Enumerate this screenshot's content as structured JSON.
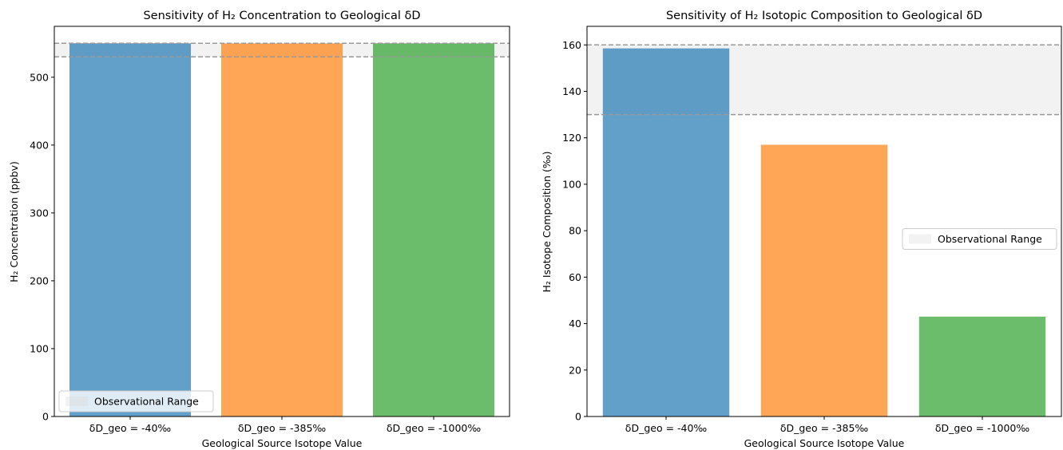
{
  "chart_data": [
    {
      "type": "bar",
      "title": "Sensitivity of H₂ Concentration to Geological δD",
      "xlabel": "Geological Source Isotope Value",
      "ylabel": "H₂ Concentration (ppbv)",
      "categories": [
        "δD_geo = -40‰",
        "δD_geo = -385‰",
        "δD_geo = -1000‰"
      ],
      "values": [
        550,
        550,
        550
      ],
      "colors": [
        "#1f77b4",
        "#ff7f0e",
        "#2ca02c"
      ],
      "ylim": [
        0,
        575
      ],
      "yticks": [
        0,
        100,
        200,
        300,
        400,
        500
      ],
      "observational_range": [
        530,
        550
      ],
      "legend": {
        "label": "Observational Range",
        "placement": "lower-left"
      }
    },
    {
      "type": "bar",
      "title": "Sensitivity of H₂ Isotopic Composition to Geological δD",
      "xlabel": "Geological Source Isotope Value",
      "ylabel": "H₂ Isotope Composition (‰)",
      "categories": [
        "δD_geo = -40‰",
        "δD_geo = -385‰",
        "δD_geo = -1000‰"
      ],
      "values": [
        158.5,
        117,
        43
      ],
      "colors": [
        "#1f77b4",
        "#ff7f0e",
        "#2ca02c"
      ],
      "ylim": [
        0,
        168
      ],
      "yticks": [
        0,
        20,
        40,
        60,
        80,
        100,
        120,
        140,
        160
      ],
      "observational_range": [
        130,
        160
      ],
      "legend": {
        "label": "Observational Range",
        "placement": "center-right"
      }
    }
  ]
}
